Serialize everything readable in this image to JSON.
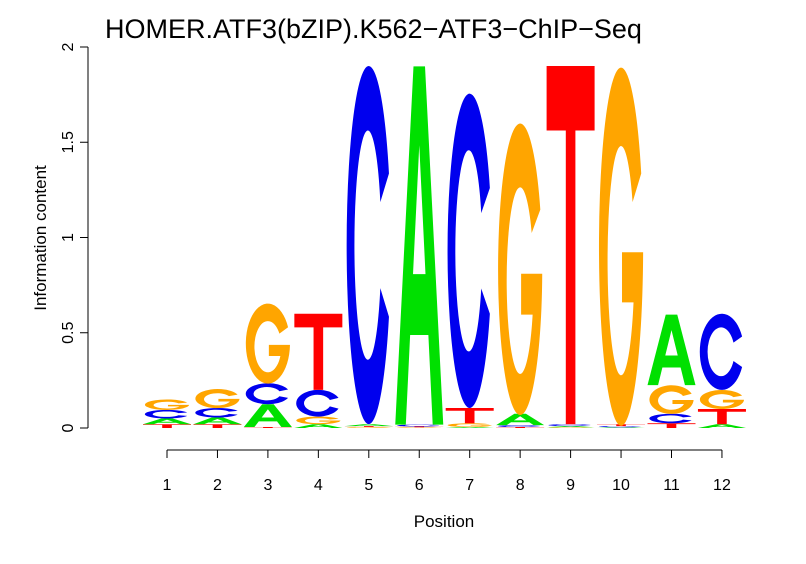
{
  "chart_data": {
    "type": "sequence-logo",
    "title": "HOMER.ATF3(bZIP).K562−ATF3−ChIP−Seq",
    "xlabel": "Position",
    "ylabel": "Information content",
    "ylim": [
      0,
      2
    ],
    "yticks": [
      "0",
      "0.5",
      "1",
      "1.5",
      "2"
    ],
    "xticks": [
      "1",
      "2",
      "3",
      "4",
      "5",
      "6",
      "7",
      "8",
      "9",
      "10",
      "11",
      "12"
    ],
    "colors": {
      "A": "#00e000",
      "C": "#0000ee",
      "G": "#ffa500",
      "T": "#ff0000"
    },
    "positions": [
      [
        [
          "T",
          0.02
        ],
        [
          "A",
          0.03
        ],
        [
          "C",
          0.045
        ],
        [
          "G",
          0.055
        ]
      ],
      [
        [
          "T",
          0.02
        ],
        [
          "A",
          0.035
        ],
        [
          "C",
          0.05
        ],
        [
          "G",
          0.1
        ]
      ],
      [
        [
          "T",
          0.005
        ],
        [
          "A",
          0.12
        ],
        [
          "C",
          0.11
        ],
        [
          "G",
          0.42
        ]
      ],
      [
        [
          "A",
          0.02
        ],
        [
          "G",
          0.04
        ],
        [
          "C",
          0.14
        ],
        [
          "T",
          0.4
        ]
      ],
      [
        [
          "G",
          0.005
        ],
        [
          "T",
          0.005
        ],
        [
          "A",
          0.01
        ],
        [
          "C",
          1.88
        ]
      ],
      [
        [
          "G",
          0.004
        ],
        [
          "T",
          0.004
        ],
        [
          "C",
          0.01
        ],
        [
          "A",
          1.88
        ]
      ],
      [
        [
          "A",
          0.005
        ],
        [
          "G",
          0.02
        ],
        [
          "T",
          0.08
        ],
        [
          "C",
          1.65
        ]
      ],
      [
        [
          "T",
          0.005
        ],
        [
          "C",
          0.01
        ],
        [
          "A",
          0.06
        ],
        [
          "G",
          1.53
        ]
      ],
      [
        [
          "G",
          0.004
        ],
        [
          "A",
          0.006
        ],
        [
          "C",
          0.01
        ],
        [
          "T",
          1.88
        ]
      ],
      [
        [
          "A",
          0.004
        ],
        [
          "C",
          0.006
        ],
        [
          "T",
          0.01
        ],
        [
          "G",
          1.88
        ]
      ],
      [
        [
          "T",
          0.025
        ],
        [
          "C",
          0.05
        ],
        [
          "G",
          0.15
        ],
        [
          "A",
          0.37
        ]
      ],
      [
        [
          "A",
          0.02
        ],
        [
          "T",
          0.08
        ],
        [
          "G",
          0.1
        ],
        [
          "C",
          0.4
        ]
      ]
    ]
  }
}
